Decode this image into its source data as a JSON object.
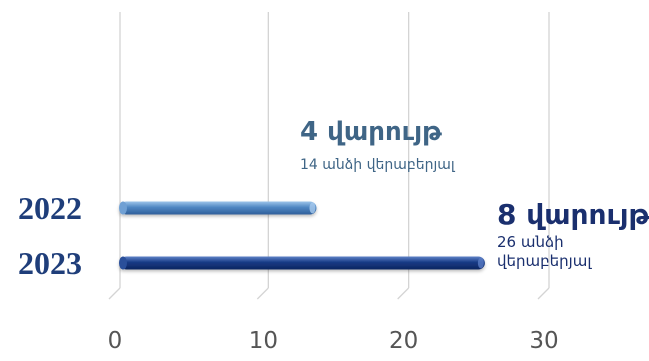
{
  "chart_data": {
    "type": "bar",
    "orientation": "horizontal",
    "categories": [
      "2022",
      "2023"
    ],
    "values": [
      14,
      26
    ],
    "xlim": [
      0,
      30
    ],
    "x_ticks": [
      0,
      10,
      20,
      30
    ],
    "grid": true,
    "colors": [
      "#4f86c2",
      "#173a85"
    ],
    "annotations": [
      {
        "main": "4 վարույթ",
        "sub": [
          "14 անձի վերաբերյալ"
        ],
        "color": "#3f6586"
      },
      {
        "main": "8 վարույթ",
        "sub": [
          "26 անձի",
          "վերաբերյալ"
        ],
        "color": "#1a2f6e"
      }
    ]
  }
}
